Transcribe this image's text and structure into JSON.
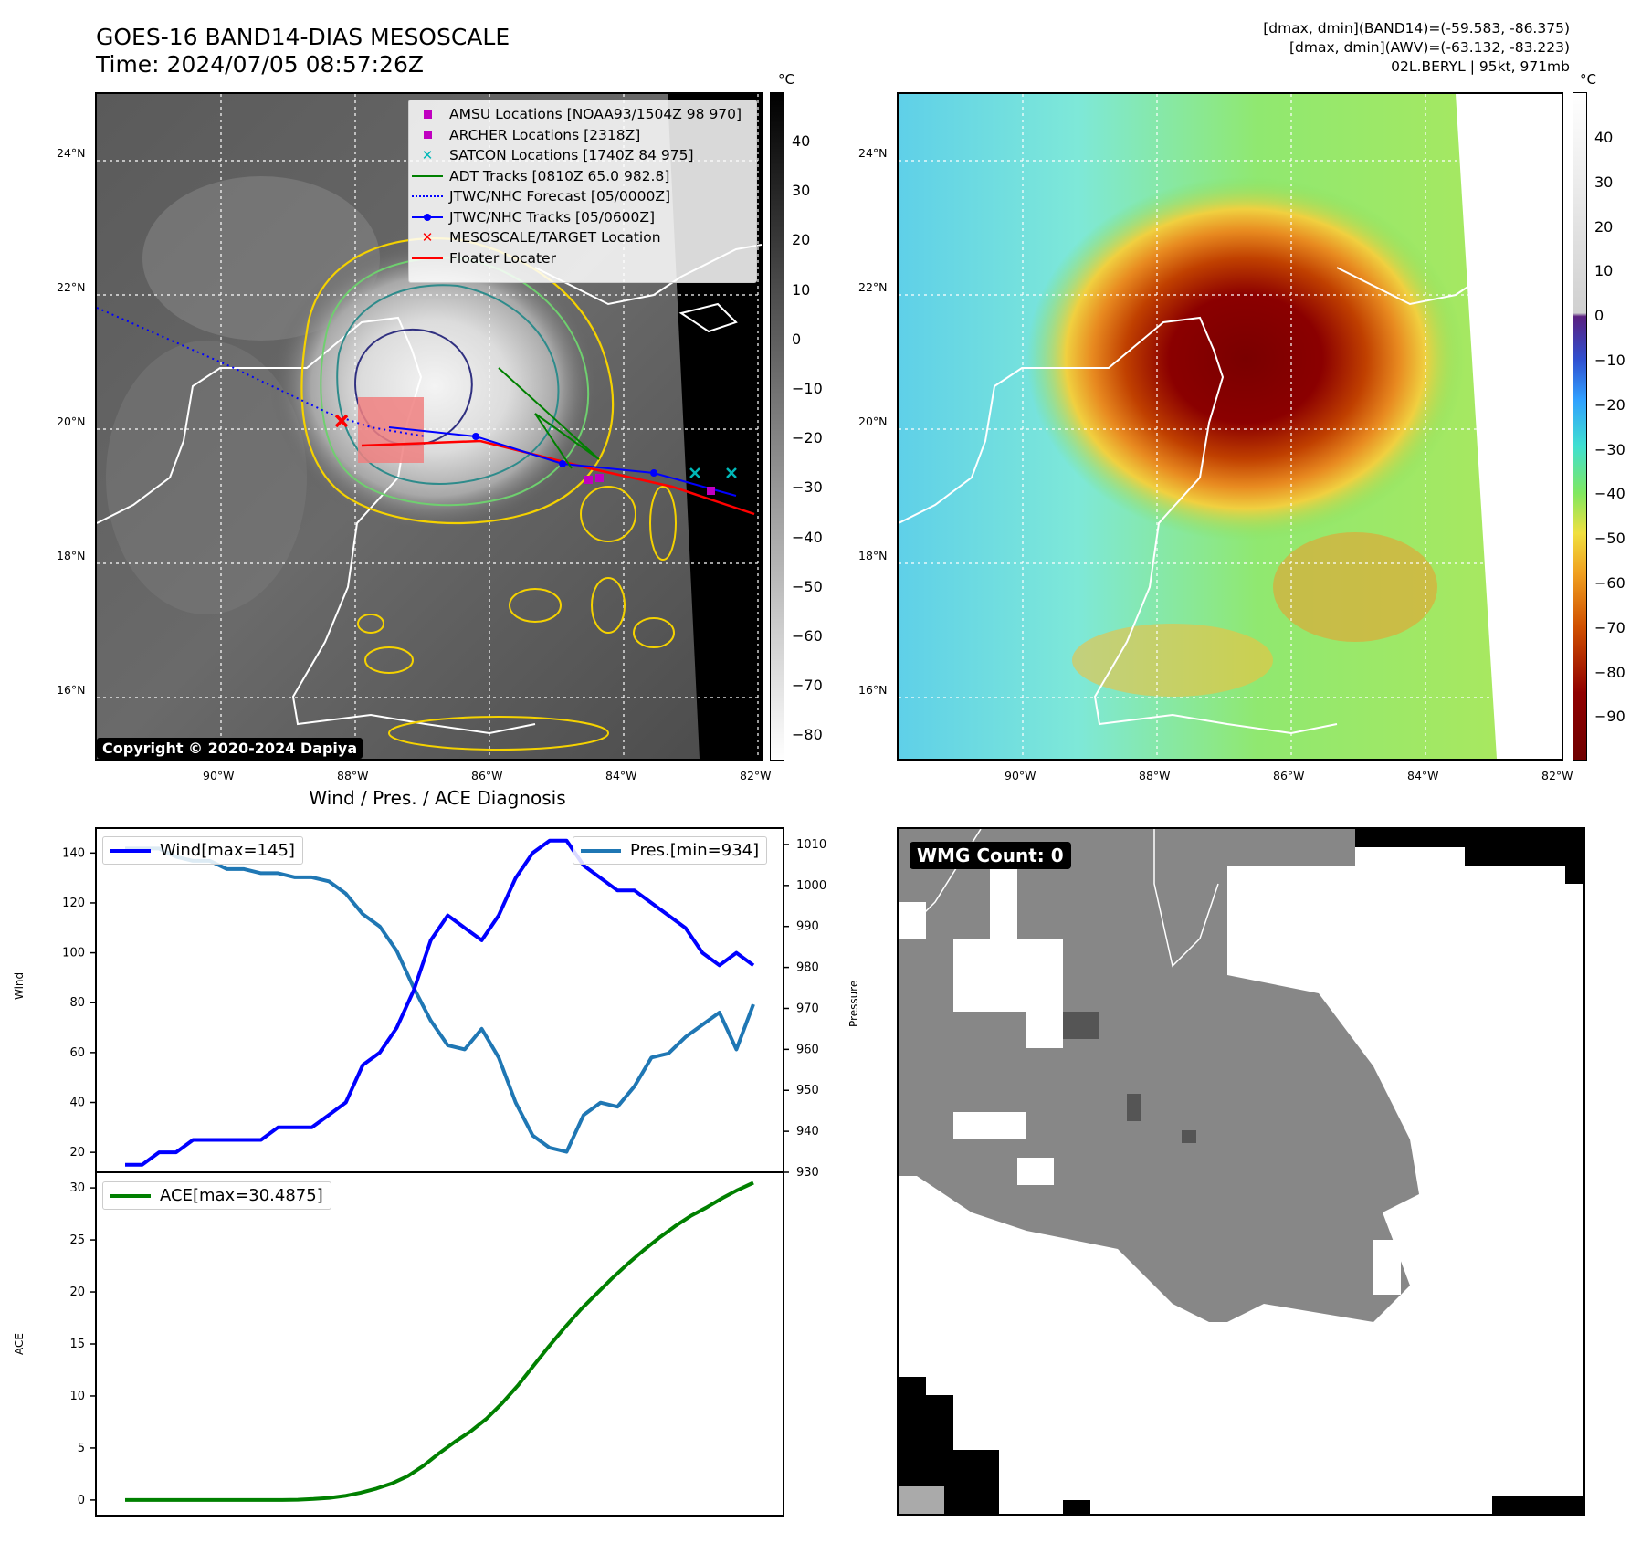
{
  "header": {
    "title_line1": "GOES-16 BAND14-DIAS MESOSCALE",
    "title_line2": "Time: 2024/07/05 08:57:26Z",
    "right_line1": "[dmax, dmin](BAND14)=(-59.583, -86.375)",
    "right_line2": "[dmax, dmin](AWV)=(-63.132, -83.223)",
    "right_line3": "02L.BERYL | 95kt, 971mb"
  },
  "map_axes": {
    "lon_ticks": [
      "90°W",
      "88°W",
      "86°W",
      "84°W",
      "82°W"
    ],
    "lat_ticks": [
      "24°N",
      "22°N",
      "20°N",
      "18°N",
      "16°N"
    ]
  },
  "ir_map": {
    "copyright": "Copyright © 2020-2024 Dapiya",
    "colorbar_unit": "°C",
    "colorbar_ticks": [
      "40",
      "30",
      "20",
      "10",
      "0",
      "−10",
      "−20",
      "−30",
      "−40",
      "−50",
      "−60",
      "−70",
      "−80"
    ],
    "legend": [
      {
        "label": "AMSU Locations [NOAA93/1504Z 98 970]",
        "symbol": "square",
        "color": "#c000c0"
      },
      {
        "label": "ARCHER Locations [2318Z]",
        "symbol": "square",
        "color": "#c000c0"
      },
      {
        "label": "SATCON Locations [1740Z 84 975]",
        "symbol": "x",
        "color": "#00b8b8"
      },
      {
        "label": "ADT Tracks [0810Z 65.0 982.8]",
        "symbol": "line",
        "color": "#008000"
      },
      {
        "label": "JTWC/NHC Forecast [05/0000Z]",
        "symbol": "dotted",
        "color": "#0000ff"
      },
      {
        "label": "JTWC/NHC Tracks [05/0600Z]",
        "symbol": "line-dot",
        "color": "#0000ff"
      },
      {
        "label": "MESOSCALE/TARGET Location",
        "symbol": "x",
        "color": "#ff0000"
      },
      {
        "label": "Floater Locater",
        "symbol": "line",
        "color": "#ff0000"
      }
    ]
  },
  "awv_map": {
    "colorbar_unit": "°C",
    "colorbar_ticks": [
      "40",
      "30",
      "20",
      "10",
      "0",
      "−10",
      "−20",
      "−30",
      "−40",
      "−50",
      "−60",
      "−70",
      "−80",
      "−90"
    ]
  },
  "wmg_panel": {
    "label": "WMG Count: 0"
  },
  "colors": {
    "wind": "#0000ff",
    "pressure": "#1f77b4",
    "ace": "#008000"
  },
  "chart_data": [
    {
      "type": "line",
      "title": "Wind / Pres. / ACE Diagnosis",
      "ylabel": "Wind",
      "ylabel_right": "Pressure",
      "ylim": [
        12,
        150
      ],
      "ylim_right": [
        930,
        1014
      ],
      "yticks": [
        20,
        40,
        60,
        80,
        100,
        120,
        140
      ],
      "yticks_right": [
        930,
        940,
        950,
        960,
        970,
        980,
        990,
        1000,
        1010
      ],
      "series": [
        {
          "name": "Wind[max=145]",
          "axis": "left",
          "values": [
            15,
            15,
            20,
            20,
            25,
            25,
            25,
            25,
            25,
            30,
            30,
            30,
            35,
            40,
            55,
            60,
            70,
            85,
            105,
            115,
            110,
            105,
            115,
            130,
            140,
            145,
            145,
            135,
            130,
            125,
            125,
            120,
            115,
            110,
            100,
            95,
            100,
            95
          ]
        },
        {
          "name": "Pres.[min=934]",
          "axis": "right",
          "values": [
            1009,
            1009,
            1009,
            1007,
            1006,
            1006,
            1004,
            1004,
            1003,
            1003,
            1002,
            1002,
            1001,
            998,
            993,
            990,
            984,
            975,
            967,
            961,
            960,
            965,
            958,
            947,
            939,
            936,
            935,
            944,
            947,
            946,
            951,
            958,
            959,
            963,
            966,
            969,
            960,
            971
          ]
        }
      ]
    },
    {
      "type": "line",
      "ylabel": "ACE",
      "ylim": [
        -1.5,
        31.5
      ],
      "yticks": [
        0,
        5,
        10,
        15,
        20,
        25,
        30
      ],
      "series": [
        {
          "name": "ACE[max=30.4875]",
          "axis": "left",
          "values": [
            0,
            0,
            0,
            0,
            0,
            0,
            0,
            0,
            0,
            0,
            0,
            0.03,
            0.1,
            0.2,
            0.4,
            0.7,
            1.1,
            1.6,
            2.3,
            3.3,
            4.5,
            5.6,
            6.6,
            7.8,
            9.3,
            11,
            12.9,
            14.8,
            16.6,
            18.3,
            19.8,
            21.3,
            22.7,
            24,
            25.2,
            26.3,
            27.3,
            28.1,
            29,
            29.8,
            30.49
          ]
        }
      ]
    }
  ]
}
